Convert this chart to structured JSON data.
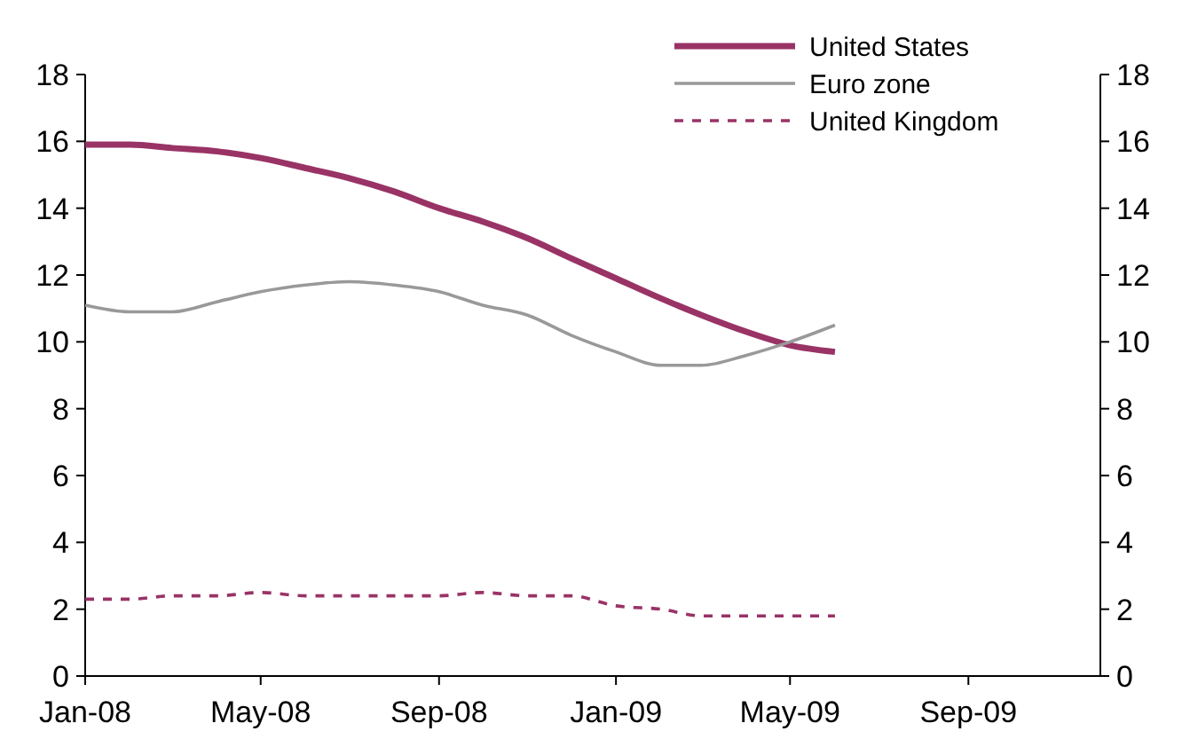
{
  "chart_data": {
    "type": "line",
    "x": [
      "2008-01",
      "2008-02",
      "2008-03",
      "2008-04",
      "2008-05",
      "2008-06",
      "2008-07",
      "2008-08",
      "2008-09",
      "2008-10",
      "2008-11",
      "2008-12",
      "2009-01",
      "2009-02",
      "2009-03",
      "2009-04",
      "2009-05",
      "2009-06"
    ],
    "series": [
      {
        "name": "United States",
        "color": "#993366",
        "line_style": "solid",
        "values": [
          15.9,
          15.9,
          15.8,
          15.7,
          15.5,
          15.2,
          14.9,
          14.5,
          14.0,
          13.6,
          13.1,
          12.5,
          11.9,
          11.3,
          10.8,
          10.3,
          9.9,
          9.7
        ]
      },
      {
        "name": "Euro zone",
        "color": "#999999",
        "line_style": "solid",
        "values": [
          11.1,
          10.9,
          10.9,
          11.2,
          11.5,
          11.7,
          11.8,
          11.7,
          11.5,
          11.1,
          10.8,
          10.2,
          9.7,
          9.3,
          9.3,
          9.6,
          10.0,
          10.5
        ]
      },
      {
        "name": "United Kingdom",
        "color": "#993366",
        "line_style": "dashed",
        "values": [
          2.3,
          2.3,
          2.4,
          2.4,
          2.5,
          2.4,
          2.4,
          2.4,
          2.4,
          2.5,
          2.4,
          2.4,
          2.1,
          2.0,
          1.8,
          1.8,
          1.8,
          1.8
        ]
      }
    ],
    "xlim": [
      "2008-01",
      "2009-12"
    ],
    "xticks": [
      {
        "value": "2008-01",
        "label": "Jan-08"
      },
      {
        "value": "2008-05",
        "label": "May-08"
      },
      {
        "value": "2008-09",
        "label": "Sep-08"
      },
      {
        "value": "2009-01",
        "label": "Jan-09"
      },
      {
        "value": "2009-05",
        "label": "May-09"
      },
      {
        "value": "2009-09",
        "label": "Sep-09"
      }
    ],
    "ylim": [
      0,
      18
    ],
    "yticks": [
      0,
      2,
      4,
      6,
      8,
      10,
      12,
      14,
      16,
      18
    ],
    "y2lim": [
      0,
      18
    ],
    "y2ticks": [
      0,
      2,
      4,
      6,
      8,
      10,
      12,
      14,
      16,
      18
    ],
    "legend": "top right",
    "grid": false
  }
}
